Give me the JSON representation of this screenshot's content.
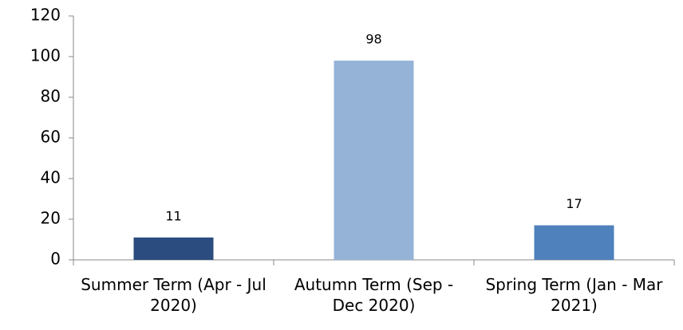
{
  "chart_data": {
    "type": "bar",
    "categories": [
      "Summer Term (Apr - Jul 2020)",
      "Autumn Term (Sep - Dec 2020)",
      "Spring Term (Jan - Mar 2021)"
    ],
    "values": [
      11,
      98,
      17
    ],
    "colors": [
      "#2b4c7e",
      "#95b3d7",
      "#4f81bd"
    ],
    "ylim": [
      0,
      120
    ],
    "yticks": [
      0,
      20,
      40,
      60,
      80,
      100,
      120
    ],
    "grid": false
  }
}
